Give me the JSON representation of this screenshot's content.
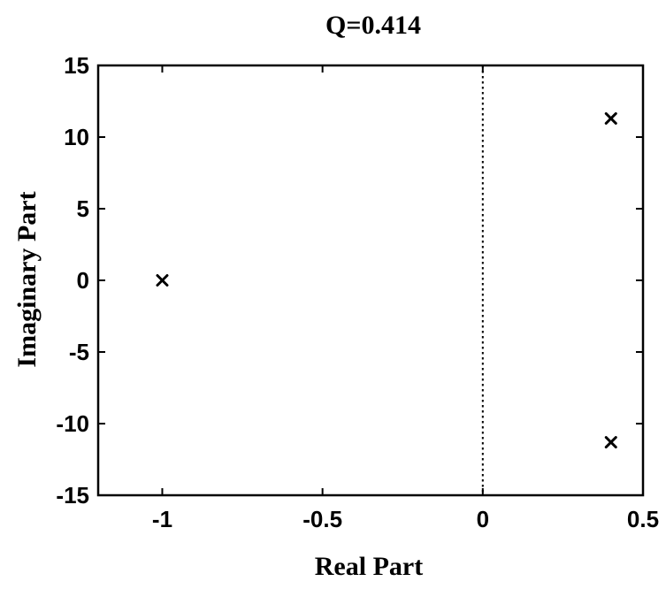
{
  "chart_data": {
    "type": "scatter",
    "title": "Q=0.414",
    "xlabel": "Real Part",
    "ylabel": "Imaginary Part",
    "xlim": [
      -1.2,
      0.5
    ],
    "ylim": [
      -15,
      15
    ],
    "xticks": [
      -1,
      -0.5,
      0,
      0.5
    ],
    "xtick_labels": [
      "-1",
      "-0.5",
      "0",
      "0.5"
    ],
    "yticks": [
      15,
      10,
      5,
      0,
      -5,
      -10,
      -15
    ],
    "ytick_labels": [
      "15",
      "10",
      "5",
      "0",
      "-5",
      "-10",
      "-15"
    ],
    "grid": false,
    "marker": "x",
    "points": [
      {
        "x": -1,
        "y": 0
      },
      {
        "x": 0.4,
        "y": 11.3
      },
      {
        "x": 0.4,
        "y": -11.3
      }
    ],
    "reference_lines": [
      {
        "orientation": "vertical",
        "x": 0,
        "style": "dotted"
      }
    ],
    "colors": {
      "marks": "#000000",
      "background": "#ffffff"
    }
  }
}
